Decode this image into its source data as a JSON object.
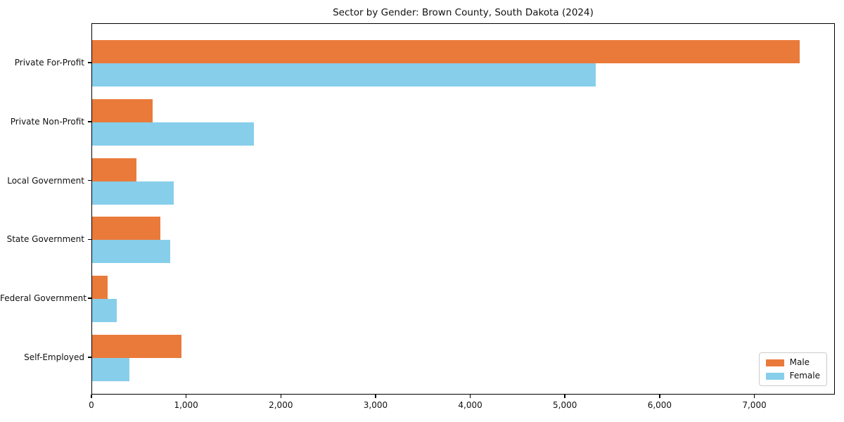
{
  "title": "Sector by Gender: Brown County, South Dakota (2024)",
  "chart_data": {
    "type": "bar",
    "orientation": "horizontal",
    "title": "Sector by Gender: Brown County, South Dakota (2024)",
    "categories": [
      "Private For-Profit",
      "Private Non-Profit",
      "Local Government",
      "State Government",
      "Federal Government",
      "Self-Employed"
    ],
    "series": [
      {
        "name": "Male",
        "color": "#ea7a3a",
        "values": [
          7470,
          635,
          470,
          720,
          160,
          945
        ]
      },
      {
        "name": "Female",
        "color": "#87ceeb",
        "values": [
          5320,
          1710,
          865,
          825,
          260,
          390
        ]
      }
    ],
    "xlabel": "",
    "ylabel": "",
    "xlim": [
      0,
      7850
    ],
    "x_ticks": [
      0,
      1000,
      2000,
      3000,
      4000,
      5000,
      6000,
      7000
    ],
    "x_tick_labels": [
      "0",
      "1,000",
      "2,000",
      "3,000",
      "4,000",
      "5,000",
      "6,000",
      "7,000"
    ],
    "grid": false,
    "legend_position": "lower right"
  }
}
